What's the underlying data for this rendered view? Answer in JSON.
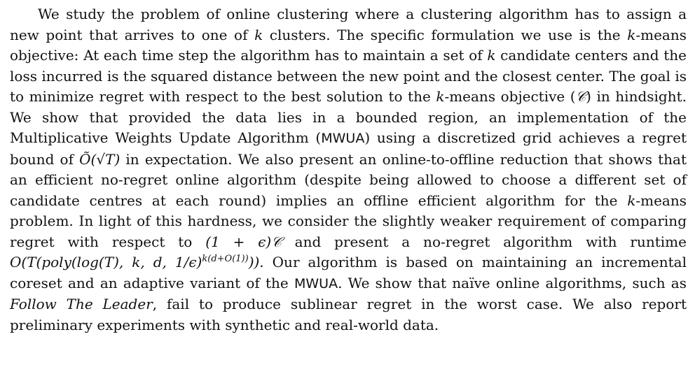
{
  "abstract": {
    "s1": "We study the problem of online clustering where a clustering algorithm has to assign a new point that arrives to one of ",
    "k": "k",
    "s2": " clusters. The specific formulation we use is the ",
    "s3": "-means objective: At each time step the algorithm has to maintain a set of ",
    "s4": " candidate centers and the loss incurred is the squared distance between the new point and the closest center. The goal is to minimize regret with respect to the best solution to the ",
    "s5": "-means objective (",
    "C": "𝒞",
    "s6": ") in hindsight. We show that provided the data lies in a bounded region, an implementation of the Multiplicative Weights Update Algorithm (",
    "mwua": "MWUA",
    "s7": ") using a discretized grid achieves a regret bound of ",
    "bound": "Õ(√T)",
    "s8": " in expectation. We also present an online-to-offline reduction that shows that an efficient no-regret online algorithm (despite being allowed to choose a different set of candidate centres at each round) implies an offline efficient algorithm for the ",
    "s9": "-means problem. In light of this hardness, we consider the slightly weaker requirement of comparing regret with respect to ",
    "approx": "(1 + ϵ)𝒞",
    "s10": " and present a no-regret algorithm with runtime ",
    "runtime_base": "O(T(poly(log(T), k, d, 1/ϵ)",
    "runtime_exp": "k(d+O(1))",
    "runtime_close": "))",
    "s11": ". Our algorithm is based on maintaining an incremental coreset and an adaptive variant of the ",
    "s12": ". We show that naïve online algorithms, such as ",
    "ftl": "Follow The Leader",
    "s13": ", fail to produce sublinear regret in the worst case. We also report preliminary experiments with synthetic and real-world data."
  }
}
